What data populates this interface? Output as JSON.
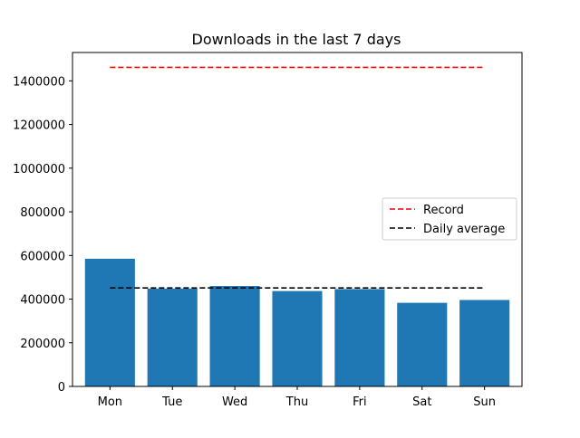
{
  "chart_data": {
    "type": "bar",
    "title": "Downloads in the last 7 days",
    "xlabel": "",
    "ylabel": "",
    "categories": [
      "Mon",
      "Tue",
      "Wed",
      "Thu",
      "Fri",
      "Sat",
      "Sun"
    ],
    "values": [
      585000,
      448000,
      460000,
      437000,
      446000,
      383000,
      396000
    ],
    "ylim": [
      0,
      1530000
    ],
    "yticks": [
      0,
      200000,
      400000,
      600000,
      800000,
      1000000,
      1200000,
      1400000
    ],
    "ytick_labels": [
      "0",
      "200000",
      "400000",
      "600000",
      "800000",
      "1000000",
      "1200000",
      "1400000"
    ],
    "bar_color": "#1f77b4",
    "reference_lines": [
      {
        "name": "Record",
        "value": 1462000,
        "color": "#ff0000",
        "style": "dashed"
      },
      {
        "name": "Daily average",
        "value": 451000,
        "color": "#000000",
        "style": "dashed"
      }
    ],
    "legend": {
      "placement": "center-right",
      "entries": [
        "Record",
        "Daily average"
      ]
    },
    "grid": false
  }
}
